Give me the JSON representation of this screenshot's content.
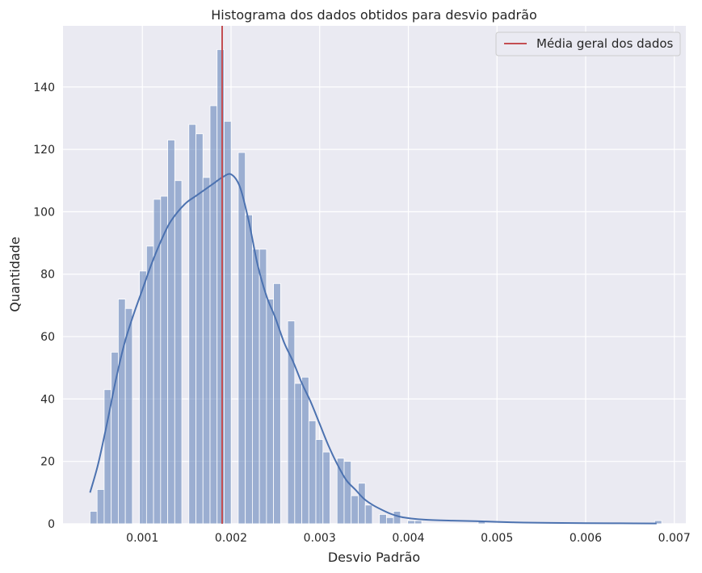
{
  "chart_data": {
    "type": "bar",
    "title": "Histograma dos dados obtidos para desvio padrão",
    "xlabel": "Desvio Padrão",
    "ylabel": "Quantidade",
    "xlim": [
      0.000105,
      0.00713
    ],
    "ylim": [
      0,
      159.6
    ],
    "xticks": [
      0.001,
      0.002,
      0.003,
      0.004,
      0.005,
      0.006,
      0.007
    ],
    "xtick_labels": [
      "0.001",
      "0.002",
      "0.003",
      "0.004",
      "0.005",
      "0.006",
      "0.007"
    ],
    "yticks": [
      0,
      20,
      40,
      60,
      80,
      100,
      120,
      140
    ],
    "ytick_labels": [
      "0",
      "20",
      "40",
      "60",
      "80",
      "100",
      "120",
      "140"
    ],
    "grid": true,
    "legend": {
      "position": "top-right",
      "entries": [
        "Média geral dos dados"
      ]
    },
    "bin_start": 0.00041,
    "bin_width": 7.96e-05,
    "counts": [
      4,
      11,
      43,
      55,
      72,
      69,
      0,
      81,
      89,
      104,
      105,
      123,
      110,
      0,
      128,
      125,
      111,
      134,
      152,
      129,
      0,
      119,
      99,
      88,
      88,
      72,
      77,
      0,
      65,
      45,
      47,
      33,
      27,
      23,
      0,
      21,
      20,
      9,
      13,
      6,
      0,
      3,
      2,
      4,
      0,
      1,
      1,
      0,
      0,
      0,
      0,
      0,
      0,
      0,
      0,
      1,
      0,
      0,
      0,
      0,
      0,
      0,
      0,
      0,
      0,
      0,
      0,
      0,
      0,
      0,
      0,
      0,
      0,
      0,
      0,
      0,
      0,
      0,
      0,
      0,
      1
    ],
    "mean_line": {
      "name": "Média geral dos dados",
      "x": 0.0019,
      "color": "#c44e52"
    },
    "kde": {
      "x": [
        0.00041,
        0.0005,
        0.0006,
        0.0007,
        0.0008,
        0.0009,
        0.001,
        0.0011,
        0.0012,
        0.0013,
        0.0014,
        0.0015,
        0.0016,
        0.0017,
        0.0018,
        0.0019,
        0.002,
        0.0021,
        0.0022,
        0.0023,
        0.0024,
        0.0025,
        0.0026,
        0.0027,
        0.0028,
        0.0029,
        0.003,
        0.0031,
        0.0032,
        0.0033,
        0.0034,
        0.0035,
        0.0036,
        0.0037,
        0.0038,
        0.0039,
        0.004,
        0.0042,
        0.0045,
        0.0048,
        0.005,
        0.0053,
        0.0056,
        0.006,
        0.0064,
        0.0068
      ],
      "y": [
        10,
        19,
        32,
        46,
        58,
        67,
        75,
        83,
        90,
        96,
        100,
        103,
        105,
        107,
        109,
        111,
        112,
        108,
        97,
        83,
        73,
        66,
        58,
        52,
        45,
        39,
        32,
        25,
        19,
        14,
        11,
        8,
        6,
        4.5,
        3.2,
        2.3,
        1.8,
        1.3,
        1.0,
        0.8,
        0.6,
        0.4,
        0.3,
        0.2,
        0.15,
        0.1
      ]
    },
    "colors": {
      "bar": "#4c72b0",
      "kde": "#4c72b0",
      "mean": "#c44e52",
      "background": "#eaeaf2",
      "grid": "#ffffff"
    }
  }
}
